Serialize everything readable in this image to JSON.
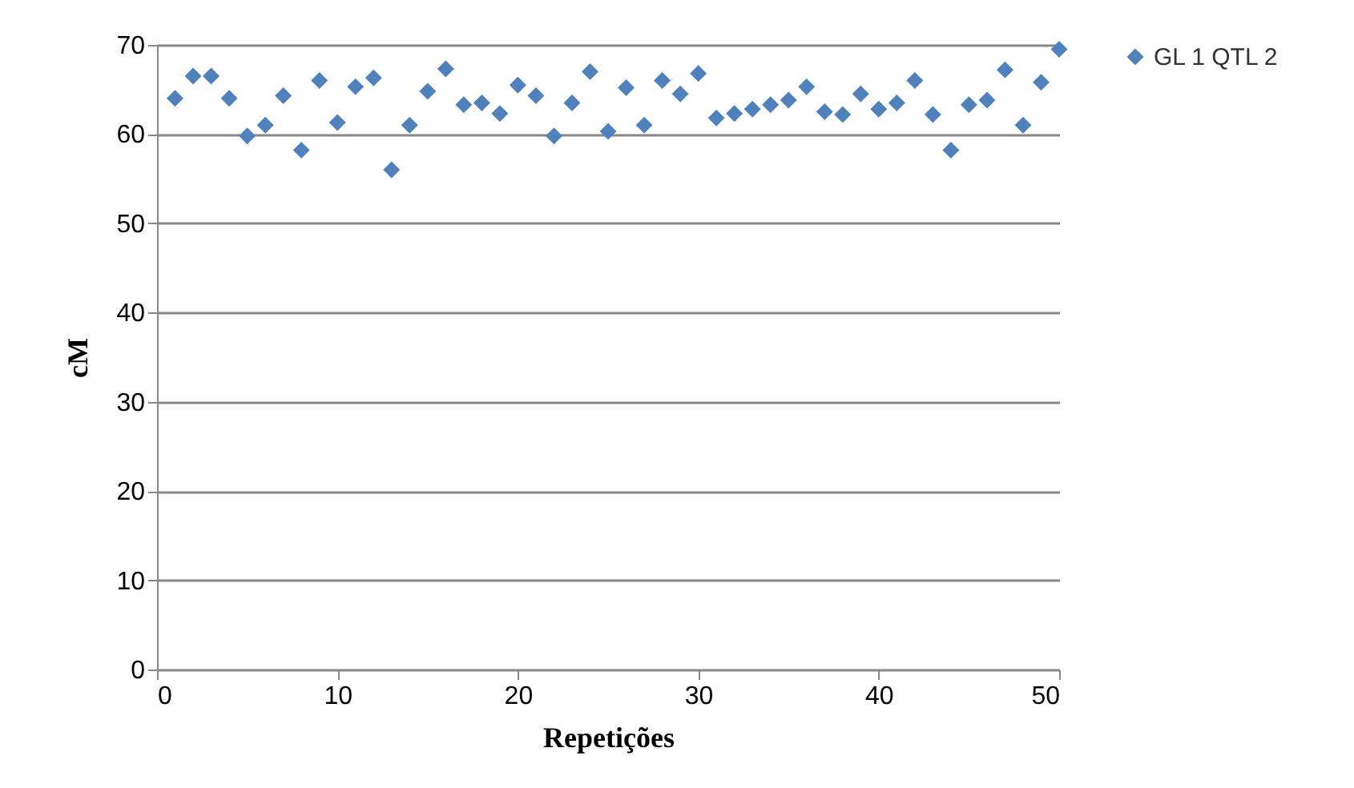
{
  "chart_data": {
    "type": "scatter",
    "xlabel": "Repetições",
    "ylabel": "cM",
    "x": [
      1,
      2,
      3,
      4,
      5,
      6,
      7,
      8,
      9,
      10,
      11,
      12,
      13,
      14,
      15,
      16,
      17,
      18,
      19,
      20,
      21,
      22,
      23,
      24,
      25,
      26,
      27,
      28,
      29,
      30,
      31,
      32,
      33,
      34,
      35,
      36,
      37,
      38,
      39,
      40,
      41,
      42,
      43,
      44,
      45,
      46,
      47,
      48,
      49,
      50
    ],
    "series": [
      {
        "name": "GL 1 QTL 2",
        "color": "#4f81bd",
        "values": [
          64,
          66.5,
          66.5,
          64,
          59.8,
          61,
          64.3,
          58.2,
          66,
          61.3,
          65.3,
          66.3,
          56,
          61,
          64.8,
          67.3,
          63.3,
          63.5,
          62.3,
          65.5,
          64.3,
          59.8,
          63.5,
          67,
          60.3,
          65.2,
          61,
          66,
          64.5,
          66.8,
          61.8,
          62.3,
          62.8,
          63.3,
          63.8,
          65.3,
          62.5,
          62.2,
          64.5,
          62.8,
          63.5,
          66,
          62.2,
          58.2,
          63.3,
          63.8,
          67.2,
          61,
          65.8,
          69.5
        ]
      }
    ],
    "xlim": [
      0,
      50
    ],
    "xticks": [
      0,
      10,
      20,
      30,
      40,
      50
    ],
    "ylim": [
      0,
      70
    ],
    "yticks": [
      0,
      10,
      20,
      30,
      40,
      50,
      60,
      70
    ],
    "grid": "y",
    "legend": "right",
    "marker": "diamond"
  }
}
